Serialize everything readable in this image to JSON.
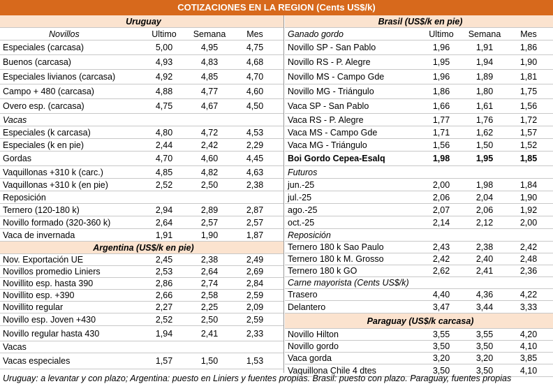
{
  "title": "COTIZACIONES EN LA REGION (Cents US$/k)",
  "left": [
    {
      "type": "section",
      "label": "Uruguay",
      "h": 18
    },
    {
      "type": "header",
      "label": "Novillos",
      "c1": "Ultimo",
      "c2": "Semana",
      "c3": "Mes",
      "h": 18
    },
    {
      "type": "data",
      "label": "Especiales (carcasa)",
      "c1": "5,00",
      "c2": "4,95",
      "c3": "4,75",
      "h": 21
    },
    {
      "type": "data",
      "label": "Buenos (carcasa)",
      "c1": "4,93",
      "c2": "4,83",
      "c3": "4,68",
      "h": 21
    },
    {
      "type": "data",
      "label": "Especiales livianos (carcasa)",
      "c1": "4,92",
      "c2": "4,85",
      "c3": "4,70",
      "h": 21
    },
    {
      "type": "data",
      "label": "Campo + 480 (carcasa)",
      "c1": "4,88",
      "c2": "4,77",
      "c3": "4,60",
      "h": 21
    },
    {
      "type": "data",
      "label": "Overo esp. (carcasa)",
      "c1": "4,75",
      "c2": "4,67",
      "c3": "4,50",
      "h": 21
    },
    {
      "type": "subheader",
      "label": "Vacas",
      "h": 18
    },
    {
      "type": "data",
      "label": "Especiales (k carcasa)",
      "c1": "4,80",
      "c2": "4,72",
      "c3": "4,53",
      "h": 18
    },
    {
      "type": "data",
      "label": "Especiales (k en pie)",
      "c1": "2,44",
      "c2": "2,42",
      "c3": "2,29",
      "h": 18
    },
    {
      "type": "data",
      "label": "Gordas",
      "c1": "4,70",
      "c2": "4,60",
      "c3": "4,45",
      "h": 21
    },
    {
      "type": "data",
      "label": "Vaquillonas +310 k (carc.)",
      "c1": "4,85",
      "c2": "4,82",
      "c3": "4,63",
      "h": 18
    },
    {
      "type": "data",
      "label": "Vaquillonas +310 k (en pie)",
      "c1": "2,52",
      "c2": "2,50",
      "c3": "2,38",
      "h": 18
    },
    {
      "type": "plain",
      "label": "Reposición",
      "h": 18
    },
    {
      "type": "data",
      "label": "Ternero (120-180 k)",
      "c1": "2,94",
      "c2": "2,89",
      "c3": "2,87",
      "h": 18
    },
    {
      "type": "data",
      "label": "Novillo formado (320-360 k)",
      "c1": "2,64",
      "c2": "2,57",
      "c3": "2,57",
      "h": 18
    },
    {
      "type": "data",
      "label": "Vaca de invernada",
      "c1": "1,91",
      "c2": "1,90",
      "c3": "1,87",
      "h": 18
    },
    {
      "type": "section",
      "label": "Argentina (US$/k en pie)",
      "h": 18
    },
    {
      "type": "data",
      "label": "Nov. Exportación UE",
      "c1": "2,45",
      "c2": "2,38",
      "c3": "2,49",
      "h": 17
    },
    {
      "type": "data",
      "label": "Novillos promedio Liniers",
      "c1": "2,53",
      "c2": "2,64",
      "c3": "2,69",
      "h": 17
    },
    {
      "type": "data",
      "label": "Novillito esp. hasta 390",
      "c1": "2,86",
      "c2": "2,74",
      "c3": "2,84",
      "h": 17
    },
    {
      "type": "data",
      "label": "Novillito esp. +390",
      "c1": "2,66",
      "c2": "2,58",
      "c3": "2,59",
      "h": 17
    },
    {
      "type": "data",
      "label": "Novillito regular",
      "c1": "2,27",
      "c2": "2,25",
      "c3": "2,09",
      "h": 17
    },
    {
      "type": "data",
      "label": "Novillo esp. Joven +430",
      "c1": "2,52",
      "c2": "2,50",
      "c3": "2,59",
      "h": 18
    },
    {
      "type": "data",
      "label": "Novillo regular hasta 430",
      "c1": "1,94",
      "c2": "2,41",
      "c3": "2,33",
      "h": 22
    },
    {
      "type": "plain",
      "label": "Vacas",
      "h": 17
    },
    {
      "type": "data",
      "label": "Vacas especiales",
      "c1": "1,57",
      "c2": "1,50",
      "c3": "1,53",
      "h": 23
    }
  ],
  "right": [
    {
      "type": "section",
      "label": "Brasil (US$/k en pie)",
      "h": 18
    },
    {
      "type": "header",
      "label": "Ganado gordo",
      "c1": "Ultimo",
      "c2": "Semana",
      "c3": "Mes",
      "h": 18
    },
    {
      "type": "data",
      "label": "Novillo SP - San Pablo",
      "c1": "1,96",
      "c2": "1,91",
      "c3": "1,86",
      "h": 21
    },
    {
      "type": "data",
      "label": "Novillo RS - P. Alegre",
      "c1": "1,95",
      "c2": "1,94",
      "c3": "1,90",
      "h": 21
    },
    {
      "type": "data",
      "label": "Novillo MS - Campo Gde",
      "c1": "1,96",
      "c2": "1,89",
      "c3": "1,81",
      "h": 21
    },
    {
      "type": "data",
      "label": "Novillo MG - Triángulo",
      "c1": "1,86",
      "c2": "1,80",
      "c3": "1,75",
      "h": 21
    },
    {
      "type": "data",
      "label": "Vaca SP - San Pablo",
      "c1": "1,66",
      "c2": "1,61",
      "c3": "1,56",
      "h": 21
    },
    {
      "type": "data",
      "label": "Vaca RS - P. Alegre",
      "c1": "1,77",
      "c2": "1,76",
      "c3": "1,72",
      "h": 18
    },
    {
      "type": "data",
      "label": "Vaca MS - Campo Gde",
      "c1": "1,71",
      "c2": "1,62",
      "c3": "1,57",
      "h": 18
    },
    {
      "type": "data",
      "label": "Vaca MG - Triángulo",
      "c1": "1,56",
      "c2": "1,50",
      "c3": "1,52",
      "h": 18
    },
    {
      "type": "data",
      "bold": true,
      "label": "Boi Gordo Cepea-Esalq",
      "c1": "1,98",
      "c2": "1,95",
      "c3": "1,85",
      "h": 21
    },
    {
      "type": "subheader",
      "label": "Futuros",
      "h": 18
    },
    {
      "type": "data",
      "label": "jun.-25",
      "c1": "2,00",
      "c2": "1,98",
      "c3": "1,84",
      "h": 18
    },
    {
      "type": "data",
      "label": "jul.-25",
      "c1": "2,06",
      "c2": "2,04",
      "c3": "1,90",
      "h": 18
    },
    {
      "type": "data",
      "label": "ago.-25",
      "c1": "2,07",
      "c2": "2,06",
      "c3": "1,92",
      "h": 18
    },
    {
      "type": "data",
      "label": "oct.-25",
      "c1": "2,14",
      "c2": "2,12",
      "c3": "2,00",
      "h": 18
    },
    {
      "type": "subheader",
      "label": "Reposición",
      "h": 18
    },
    {
      "type": "data",
      "label": "Ternero 180 k Sao Paulo",
      "c1": "2,43",
      "c2": "2,38",
      "c3": "2,42",
      "h": 17
    },
    {
      "type": "data",
      "label": "Ternero 180 k M. Grosso",
      "c1": "2,42",
      "c2": "2,40",
      "c3": "2,48",
      "h": 17
    },
    {
      "type": "data",
      "label": "Ternero 180 k GO",
      "c1": "2,62",
      "c2": "2,41",
      "c3": "2,36",
      "h": 17
    },
    {
      "type": "subheader",
      "label": "Carne mayorista (Cents US$/k)",
      "h": 17
    },
    {
      "type": "data",
      "label": "Trasero",
      "c1": "4,40",
      "c2": "4,36",
      "c3": "4,22",
      "h": 17
    },
    {
      "type": "data",
      "label": "Delantero",
      "c1": "3,47",
      "c2": "3,44",
      "c3": "3,33",
      "h": 18
    },
    {
      "type": "section",
      "label": "Paraguay (US$/k carcasa)",
      "h": 22
    },
    {
      "type": "data",
      "label": "Novillo Hilton",
      "c1": "3,55",
      "c2": "3,55",
      "c3": "4,20",
      "h": 17
    },
    {
      "type": "data",
      "label": "Novillo gordo",
      "c1": "3,50",
      "c2": "3,50",
      "c3": "4,10",
      "h": 17
    },
    {
      "type": "data",
      "label": "Vaca gorda",
      "c1": "3,20",
      "c2": "3,20",
      "c3": "3,85",
      "h": 17
    },
    {
      "type": "data",
      "label": "Vaquillona Chile 4 dtes",
      "c1": "3,50",
      "c2": "3,50",
      "c3": "4,10",
      "h": 18
    }
  ],
  "footer": "Uruguay: a levantar y con plazo; Argentina: puesto en Liniers y fuentes propias. Brasil: puesto con plazo. Paraguay, fuentes propias"
}
